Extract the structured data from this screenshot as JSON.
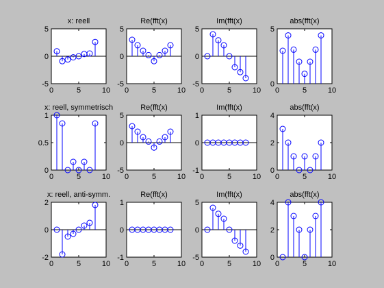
{
  "colors": {
    "background": "#c0c0c0",
    "axes": "#ffffff",
    "stem": "#0000ff",
    "frame": "#000000"
  },
  "chart_data": [
    {
      "type": "stem",
      "title": "x: reell",
      "xlim": [
        0,
        10
      ],
      "ylim": [
        -5,
        5
      ],
      "xticks": [
        "0",
        "5",
        "10"
      ],
      "yticks": [
        "-5",
        "0",
        "5"
      ],
      "x": [
        1,
        2,
        3,
        4,
        5,
        6,
        7,
        8
      ],
      "y": [
        0.9,
        -0.9,
        -0.6,
        -0.2,
        0.0,
        0.4,
        0.5,
        2.6
      ],
      "baseline": 0
    },
    {
      "type": "stem",
      "title": "Re(fft(x)",
      "xlim": [
        0,
        10
      ],
      "ylim": [
        -5,
        5
      ],
      "xticks": [
        "0",
        "5",
        "10"
      ],
      "yticks": [
        "-5",
        "0",
        "5"
      ],
      "x": [
        1,
        2,
        3,
        4,
        5,
        6,
        7,
        8
      ],
      "y": [
        3.0,
        2.0,
        1.0,
        0.2,
        -0.9,
        0.2,
        1.0,
        2.0
      ],
      "baseline": 0
    },
    {
      "type": "stem",
      "title": "Im(fft(x)",
      "xlim": [
        0,
        10
      ],
      "ylim": [
        -5,
        5
      ],
      "xticks": [
        "0",
        "5",
        "10"
      ],
      "yticks": [
        "-5",
        "0",
        "5"
      ],
      "x": [
        1,
        2,
        3,
        4,
        5,
        6,
        7,
        8
      ],
      "y": [
        0.0,
        4.0,
        2.9,
        2.0,
        0.0,
        -2.0,
        -2.9,
        -4.0
      ],
      "baseline": 0
    },
    {
      "type": "stem",
      "title": "abs(fft(x)",
      "xlim": [
        0,
        10
      ],
      "ylim": [
        0,
        5
      ],
      "xticks": [
        "0",
        "5",
        "10"
      ],
      "yticks": [
        "0",
        "5"
      ],
      "x": [
        1,
        2,
        3,
        4,
        5,
        6,
        7,
        8
      ],
      "y": [
        3.0,
        4.4,
        3.1,
        2.0,
        0.9,
        2.0,
        3.1,
        4.4
      ],
      "baseline": 0
    },
    {
      "type": "stem",
      "title": "x: reell, symmetrisch",
      "xlim": [
        0,
        10
      ],
      "ylim": [
        0,
        1
      ],
      "xticks": [
        "0",
        "5",
        "10"
      ],
      "yticks": [
        "0",
        "0.5",
        "1"
      ],
      "x": [
        1,
        2,
        3,
        4,
        5,
        6,
        7,
        8
      ],
      "y": [
        1.0,
        0.85,
        0.0,
        0.15,
        0.0,
        0.15,
        0.0,
        0.85
      ],
      "baseline": 0
    },
    {
      "type": "stem",
      "title": "Re(fft(x)",
      "xlim": [
        0,
        10
      ],
      "ylim": [
        -5,
        5
      ],
      "xticks": [
        "0",
        "5",
        "10"
      ],
      "yticks": [
        "-5",
        "0",
        "5"
      ],
      "x": [
        1,
        2,
        3,
        4,
        5,
        6,
        7,
        8
      ],
      "y": [
        3.0,
        2.0,
        1.0,
        0.2,
        -0.9,
        0.2,
        1.0,
        2.0
      ],
      "baseline": 0
    },
    {
      "type": "stem",
      "title": "Im(fft(x)",
      "xlim": [
        0,
        10
      ],
      "ylim": [
        -1,
        1
      ],
      "xticks": [
        "0",
        "5",
        "10"
      ],
      "yticks": [
        "-1",
        "0",
        "1"
      ],
      "x": [
        1,
        2,
        3,
        4,
        5,
        6,
        7,
        8
      ],
      "y": [
        0,
        0,
        0,
        0,
        0,
        0,
        0,
        0
      ],
      "baseline": 0
    },
    {
      "type": "stem",
      "title": "abs(fft(x)",
      "xlim": [
        0,
        10
      ],
      "ylim": [
        0,
        4
      ],
      "xticks": [
        "0",
        "5",
        "10"
      ],
      "yticks": [
        "0",
        "2",
        "4"
      ],
      "x": [
        1,
        2,
        3,
        4,
        5,
        6,
        7,
        8
      ],
      "y": [
        3.0,
        2.0,
        1.0,
        0.0,
        1.0,
        0.0,
        1.0,
        2.0
      ],
      "baseline": 0
    },
    {
      "type": "stem",
      "title": "x: reell, anti-symm.",
      "xlim": [
        0,
        10
      ],
      "ylim": [
        -2,
        2
      ],
      "xticks": [
        "0",
        "5",
        "10"
      ],
      "yticks": [
        "-2",
        "0",
        "2"
      ],
      "x": [
        1,
        2,
        3,
        4,
        5,
        6,
        7,
        8
      ],
      "y": [
        0.0,
        -1.8,
        -0.5,
        -0.3,
        0.0,
        0.3,
        0.5,
        1.8
      ],
      "baseline": 0
    },
    {
      "type": "stem",
      "title": "Re(fft(x)",
      "xlim": [
        0,
        10
      ],
      "ylim": [
        -1,
        1
      ],
      "xticks": [
        "0",
        "5",
        "10"
      ],
      "yticks": [
        "-1",
        "0",
        "1"
      ],
      "x": [
        1,
        2,
        3,
        4,
        5,
        6,
        7,
        8
      ],
      "y": [
        0,
        0,
        0,
        0,
        0,
        0,
        0,
        0
      ],
      "baseline": 0
    },
    {
      "type": "stem",
      "title": "Im(fft(x)",
      "xlim": [
        0,
        10
      ],
      "ylim": [
        -5,
        5
      ],
      "xticks": [
        "0",
        "5",
        "10"
      ],
      "yticks": [
        "-5",
        "0",
        "5"
      ],
      "x": [
        1,
        2,
        3,
        4,
        5,
        6,
        7,
        8
      ],
      "y": [
        0.0,
        4.0,
        2.9,
        2.0,
        0.0,
        -2.0,
        -2.9,
        -4.0
      ],
      "baseline": 0
    },
    {
      "type": "stem",
      "title": "abs(fft(x)",
      "xlim": [
        0,
        10
      ],
      "ylim": [
        0,
        4
      ],
      "xticks": [
        "0",
        "5",
        "10"
      ],
      "yticks": [
        "0",
        "2",
        "4"
      ],
      "x": [
        1,
        2,
        3,
        4,
        5,
        6,
        7,
        8
      ],
      "y": [
        0.0,
        4.0,
        3.0,
        2.0,
        0.0,
        2.0,
        3.0,
        4.0
      ],
      "baseline": 0
    }
  ]
}
